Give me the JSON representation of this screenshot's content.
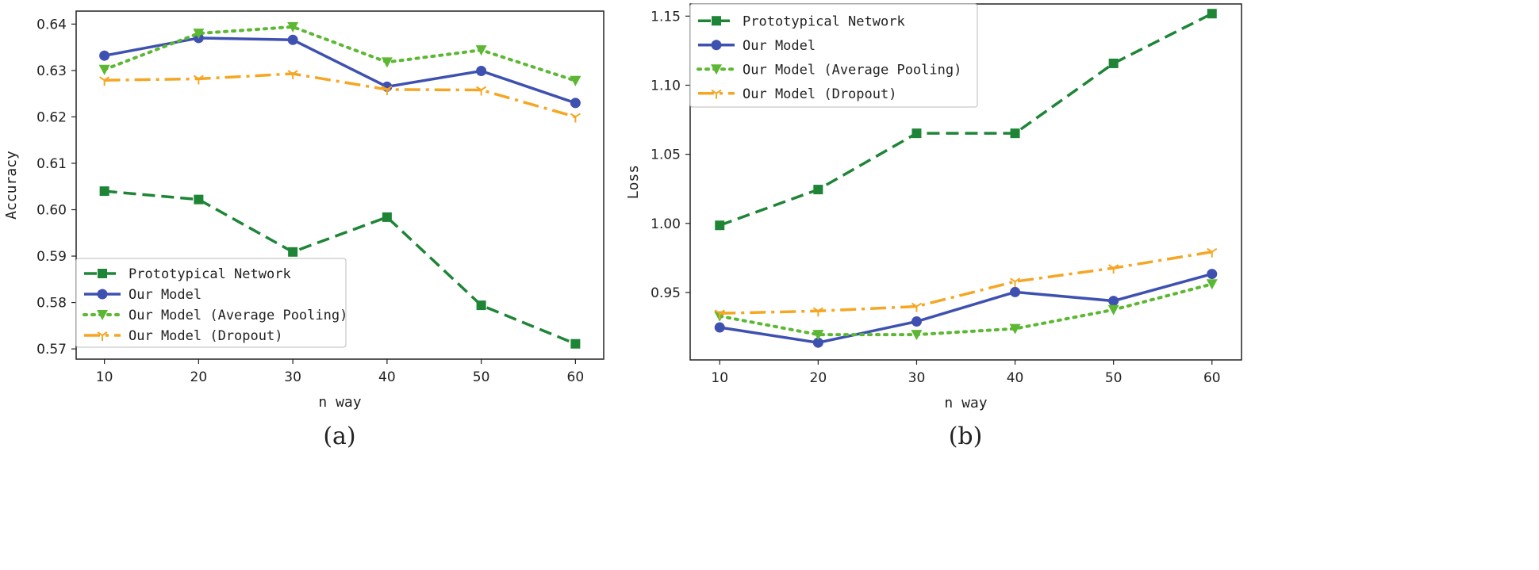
{
  "chart_data": [
    {
      "type": "line",
      "panel": "a",
      "caption": "(a)",
      "xlabel": "n way",
      "ylabel": "Accuracy",
      "x": [
        10,
        20,
        30,
        40,
        50,
        60
      ],
      "xticks": [
        "10",
        "20",
        "30",
        "40",
        "50",
        "60"
      ],
      "xlim": [
        7,
        63
      ],
      "ylim": [
        0.5678,
        0.6428
      ],
      "yticks": [
        0.57,
        0.58,
        0.59,
        0.6,
        0.61,
        0.62,
        0.63,
        0.64
      ],
      "ytick_labels": [
        "0.57",
        "0.58",
        "0.59",
        "0.60",
        "0.61",
        "0.62",
        "0.63",
        "0.64"
      ],
      "legend_position": "lower-left",
      "series": [
        {
          "name": "Prototypical Network",
          "color": "#1e8537",
          "dash": "dashed",
          "marker": "square",
          "values": [
            0.604,
            0.6022,
            0.5909,
            0.5984,
            0.5794,
            0.5711
          ]
        },
        {
          "name": "Our Model",
          "color": "#3f51b0",
          "dash": "solid",
          "marker": "circle",
          "values": [
            0.6332,
            0.637,
            0.6366,
            0.6265,
            0.6299,
            0.623
          ]
        },
        {
          "name": "Our Model (Average Pooling)",
          "color": "#5cb833",
          "dash": "dotted",
          "marker": "triangle-down",
          "values": [
            0.6302,
            0.638,
            0.6394,
            0.6318,
            0.6344,
            0.6278
          ]
        },
        {
          "name": "Our Model (Dropout)",
          "color": "#f5a623",
          "dash": "dashdot",
          "marker": "tri",
          "values": [
            0.6279,
            0.6282,
            0.6293,
            0.6259,
            0.6258,
            0.62
          ]
        }
      ]
    },
    {
      "type": "line",
      "panel": "b",
      "caption": "(b)",
      "xlabel": "n way",
      "ylabel": "Loss",
      "x": [
        10,
        20,
        30,
        40,
        50,
        60
      ],
      "xticks": [
        "10",
        "20",
        "30",
        "40",
        "50",
        "60"
      ],
      "xlim": [
        7,
        63
      ],
      "ylim": [
        0.9012,
        1.1588
      ],
      "yticks": [
        0.95,
        1.0,
        1.05,
        1.1,
        1.15
      ],
      "ytick_labels": [
        "0.95",
        "1.00",
        "1.05",
        "1.10",
        "1.15"
      ],
      "legend_position": "top-left",
      "series": [
        {
          "name": "Prototypical Network",
          "color": "#1e8537",
          "dash": "dashed",
          "marker": "square",
          "values": [
            0.9986,
            1.0245,
            1.0652,
            1.0652,
            1.1158,
            1.1518
          ]
        },
        {
          "name": "Our Model",
          "color": "#3f51b0",
          "dash": "solid",
          "marker": "circle",
          "values": [
            0.9247,
            0.9137,
            0.929,
            0.9503,
            0.9439,
            0.9634
          ]
        },
        {
          "name": "Our Model (Average Pooling)",
          "color": "#5cb833",
          "dash": "dotted",
          "marker": "triangle-down",
          "values": [
            0.9329,
            0.9195,
            0.9195,
            0.9238,
            0.9375,
            0.9561
          ]
        },
        {
          "name": "Our Model (Dropout)",
          "color": "#f5a623",
          "dash": "dashdot",
          "marker": "tri",
          "values": [
            0.9349,
            0.9366,
            0.9399,
            0.9579,
            0.9677,
            0.9794
          ]
        }
      ]
    }
  ]
}
